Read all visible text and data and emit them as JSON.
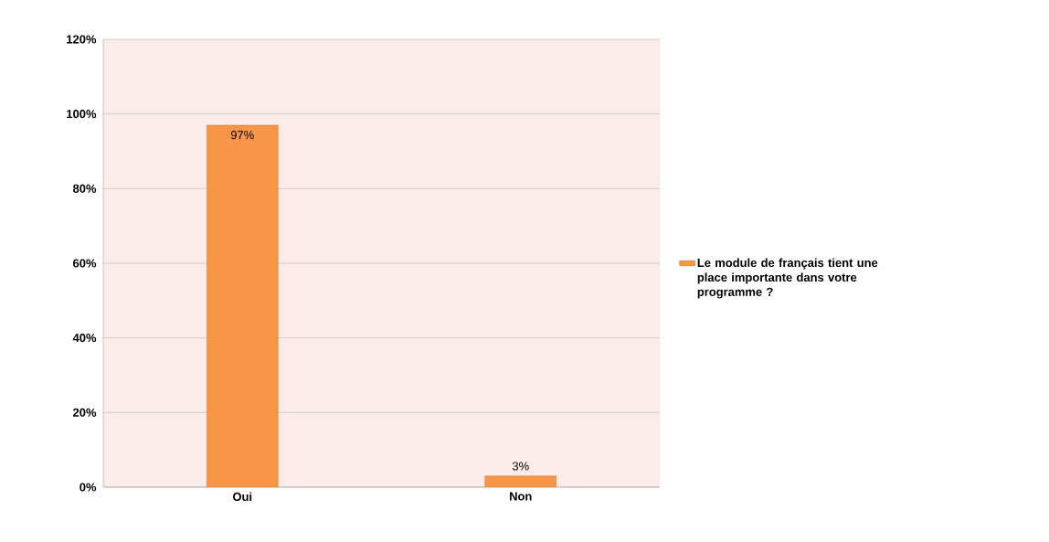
{
  "chart_data": {
    "type": "bar",
    "categories": [
      "Oui",
      "Non"
    ],
    "series": [
      {
        "name": "Le module de français tient une place importante dans votre programme ?",
        "color": "#f79646",
        "values": [
          97,
          3
        ],
        "value_labels": [
          "97%",
          "3%"
        ]
      }
    ],
    "ylim": [
      0,
      120
    ],
    "yticks": [
      {
        "value": 0,
        "label": "0%"
      },
      {
        "value": 20,
        "label": "20%"
      },
      {
        "value": 40,
        "label": "40%"
      },
      {
        "value": 60,
        "label": "60%"
      },
      {
        "value": 80,
        "label": "80%"
      },
      {
        "value": 100,
        "label": "100%"
      },
      {
        "value": 120,
        "label": "120%"
      }
    ],
    "grid": "y",
    "legend": "right"
  }
}
